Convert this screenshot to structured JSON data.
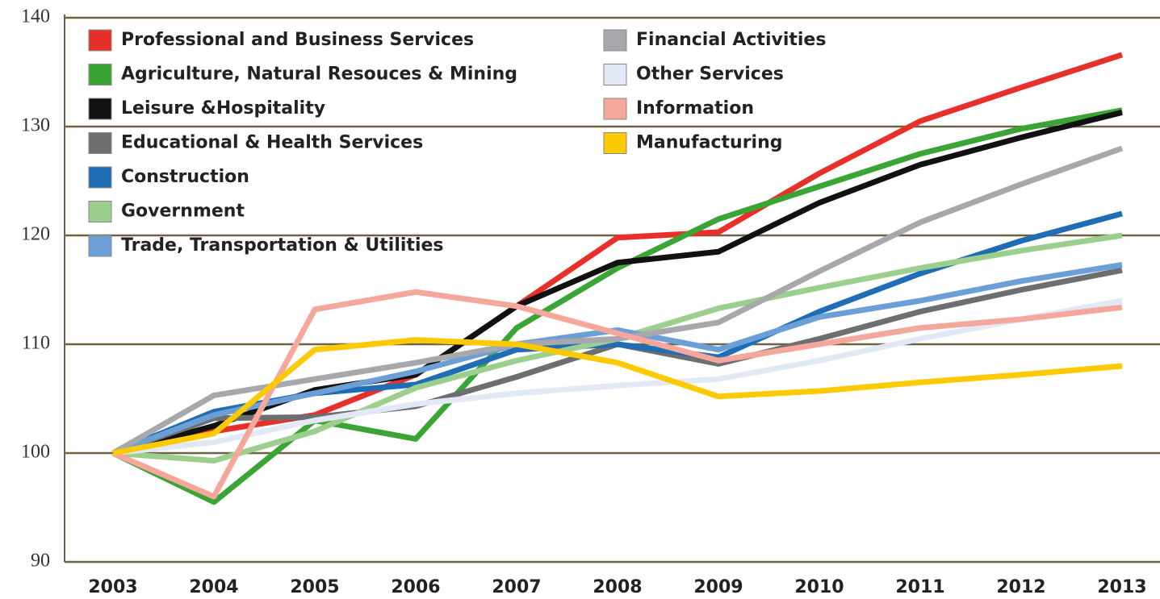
{
  "chart_data": {
    "type": "line",
    "x": [
      "2003",
      "2004",
      "2005",
      "2006",
      "2007",
      "2008",
      "2009",
      "2010",
      "2011",
      "2012",
      "2013"
    ],
    "ylim": [
      90,
      140
    ],
    "yticks": [
      90,
      100,
      110,
      120,
      130,
      140
    ],
    "grid": true,
    "series": [
      {
        "name": "Professional and Business Services",
        "color": "#e8302a",
        "values": [
          100,
          102,
          103.5,
          107.2,
          113.5,
          119.8,
          120.3,
          125.7,
          130.5,
          133.6,
          136.6
        ]
      },
      {
        "name": "Agriculture, Natural Resouces & Mining",
        "color": "#3aa535",
        "values": [
          100,
          95.5,
          103,
          101.3,
          111.5,
          117,
          121.5,
          124.5,
          127.5,
          129.8,
          131.5
        ]
      },
      {
        "name": "Leisure &Hospitality",
        "color": "#111111",
        "values": [
          100,
          102.5,
          105.8,
          107.2,
          113.5,
          117.5,
          118.5,
          123,
          126.5,
          129,
          131.3
        ]
      },
      {
        "name": "Educational & Health Services",
        "color": "#6d6e70",
        "values": [
          100,
          103.2,
          103.3,
          104.3,
          107,
          110,
          108.2,
          110.5,
          113,
          115,
          116.8
        ]
      },
      {
        "name": "Construction",
        "color": "#1f6db5",
        "values": [
          100,
          103.8,
          105.5,
          106.3,
          109.5,
          110,
          108.8,
          113,
          116.5,
          119.5,
          122
        ]
      },
      {
        "name": "Government",
        "color": "#9ccf8e",
        "values": [
          100,
          99.3,
          102,
          106,
          108.5,
          110.5,
          113.3,
          115.2,
          117,
          118.6,
          120
        ]
      },
      {
        "name": "Trade, Transportation & Utilities",
        "color": "#6c9fd6",
        "values": [
          100,
          103.5,
          105.5,
          107.5,
          110,
          111.3,
          109.5,
          112.5,
          114,
          115.8,
          117.3
        ]
      },
      {
        "name": "Financial Activities",
        "color": "#a7a8ab",
        "values": [
          100,
          105.3,
          106.8,
          108.3,
          110,
          110.5,
          112,
          116.7,
          121.2,
          124.7,
          128
        ]
      },
      {
        "name": "Other Services",
        "color": "#e2e8f5",
        "values": [
          100,
          101,
          103,
          104.5,
          105.5,
          106.2,
          106.8,
          108.5,
          110.5,
          112.3,
          114
        ]
      },
      {
        "name": "Information",
        "color": "#f4a79a",
        "values": [
          100,
          96,
          113.2,
          114.8,
          113.5,
          111,
          108.5,
          110,
          111.5,
          112.3,
          113.4
        ]
      },
      {
        "name": "Manufacturing",
        "color": "#fdc900",
        "values": [
          100,
          101.8,
          109.5,
          110.4,
          110,
          108.3,
          105.2,
          105.7,
          106.5,
          107.2,
          108
        ]
      }
    ]
  }
}
